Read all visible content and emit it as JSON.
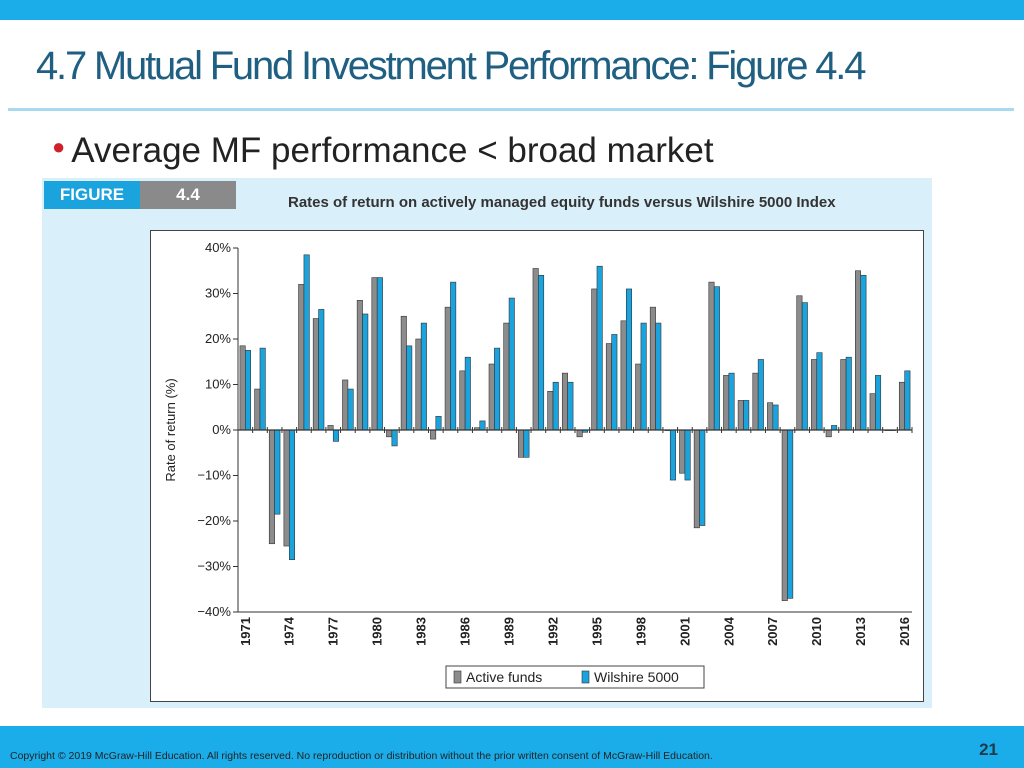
{
  "slide": {
    "title": "4.7 Mutual Fund Investment Performance: Figure 4.4",
    "bullet": "Average MF performance < broad market",
    "figure_label": "FIGURE",
    "figure_number": "4.4",
    "figure_caption": "Rates of return on actively managed equity funds versus Wilshire 5000 Index",
    "copyright": "Copyright © 2019 McGraw-Hill Education. All rights reserved. No reproduction or distribution without the prior written consent of McGraw-Hill Education.",
    "page_number": "21"
  },
  "colors": {
    "accent_bar": "#1aadea",
    "title": "#1f5f82",
    "active_funds": "#8c8c8c",
    "wilshire": "#1aa3dd"
  },
  "chart_data": {
    "type": "bar",
    "title": "Rates of return on actively managed equity funds versus Wilshire 5000 Index",
    "xlabel": "",
    "ylabel": "Rate of return (%)",
    "ylim": [
      -40,
      40
    ],
    "yticks": [
      40,
      30,
      20,
      10,
      0,
      -10,
      -20,
      -30,
      -40
    ],
    "ytick_labels": [
      "40%",
      "30%",
      "20%",
      "10%",
      "0%",
      "−10%",
      "−20%",
      "−30%",
      "−40%"
    ],
    "xtick_labels": [
      "1971",
      "1974",
      "1977",
      "1980",
      "1983",
      "1986",
      "1989",
      "1992",
      "1995",
      "1998",
      "2001",
      "2004",
      "2007",
      "2010",
      "2013",
      "2016"
    ],
    "legend_position": "bottom-center",
    "categories": [
      "1971",
      "1972",
      "1973",
      "1974",
      "1975",
      "1976",
      "1977",
      "1978",
      "1979",
      "1980",
      "1981",
      "1982",
      "1983",
      "1984",
      "1985",
      "1986",
      "1987",
      "1988",
      "1989",
      "1990",
      "1991",
      "1992",
      "1993",
      "1994",
      "1995",
      "1996",
      "1997",
      "1998",
      "1999",
      "2000",
      "2001",
      "2002",
      "2003",
      "2004",
      "2005",
      "2006",
      "2007",
      "2008",
      "2009",
      "2010",
      "2011",
      "2012",
      "2013",
      "2014",
      "2015",
      "2016"
    ],
    "series": [
      {
        "name": "Active funds",
        "values": [
          18.5,
          9,
          -25,
          -25.5,
          32,
          24.5,
          1,
          11,
          28.5,
          33.5,
          -1.5,
          25,
          20,
          -2,
          27,
          13,
          0.5,
          14.5,
          23.5,
          -6,
          35.5,
          8.5,
          12.5,
          -1.5,
          31,
          19,
          24,
          14.5,
          27,
          0,
          -9.5,
          -21.5,
          32.5,
          12,
          6.5,
          12.5,
          6,
          -37.5,
          29.5,
          15.5,
          -1.5,
          15.5,
          35,
          8,
          0,
          10.5
        ]
      },
      {
        "name": "Wilshire 5000",
        "values": [
          17.5,
          18,
          -18.5,
          -28.5,
          38.5,
          26.5,
          -2.5,
          9,
          25.5,
          33.5,
          -3.5,
          18.5,
          23.5,
          3,
          32.5,
          16,
          2,
          18,
          29,
          -6,
          34,
          10.5,
          10.5,
          -0.5,
          36,
          21,
          31,
          23.5,
          23.5,
          -11,
          -11,
          -21,
          31.5,
          12.5,
          6.5,
          15.5,
          5.5,
          -37,
          28,
          17,
          1,
          16,
          34,
          12,
          0,
          13
        ]
      }
    ]
  }
}
